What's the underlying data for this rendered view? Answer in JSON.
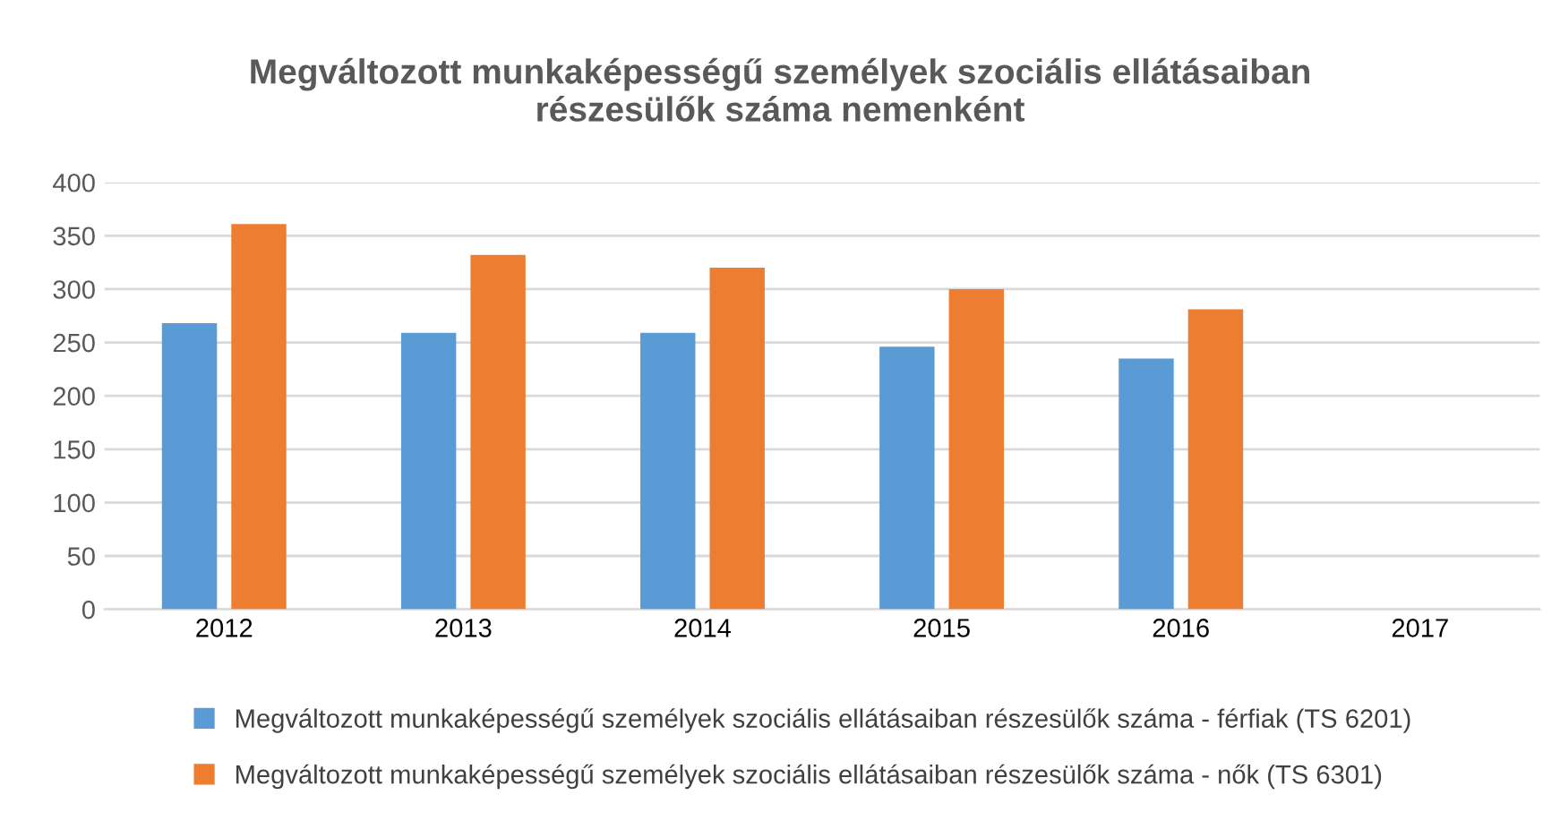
{
  "chart_data": {
    "type": "bar",
    "title": "Megváltozott munkaképességű személyek szociális ellátásaiban\nrészesülők száma nemenként",
    "categories": [
      "2012",
      "2013",
      "2014",
      "2015",
      "2016",
      "2017"
    ],
    "series": [
      {
        "name": "Megváltozott munkaképességű személyek szociális ellátásaiban részesülők száma - férfiak (TS 6201)",
        "color": "#5b9bd5",
        "values": [
          268,
          259,
          259,
          246,
          235,
          null
        ]
      },
      {
        "name": "Megváltozott munkaképességű személyek szociális ellátásaiban részesülők száma - nők (TS 6301)",
        "color": "#ed7d31",
        "values": [
          361,
          332,
          320,
          300,
          281,
          null
        ]
      }
    ],
    "ylim": [
      0,
      400
    ],
    "yticks": [
      0,
      50,
      100,
      150,
      200,
      250,
      300,
      350,
      400
    ],
    "grid": "y",
    "legend": "bottom"
  }
}
